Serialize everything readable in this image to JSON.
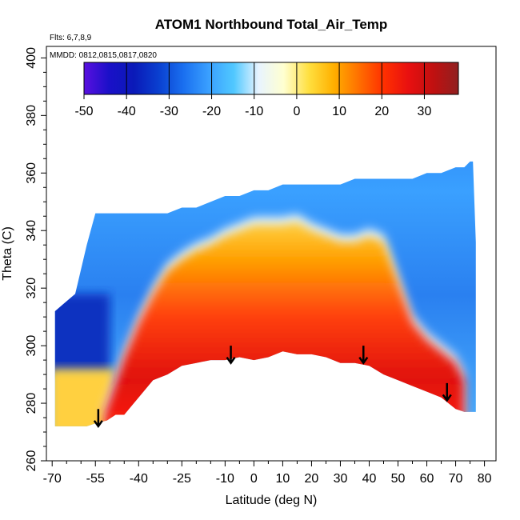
{
  "chart_data": {
    "type": "heatmap",
    "title": "ATOM1 Northbound Total_Air_Temp",
    "xlabel": "Latitude (deg N)",
    "ylabel": "Theta (C)",
    "xlim": [
      -72,
      84
    ],
    "ylim": [
      260,
      404
    ],
    "x_ticks": [
      -70,
      -55,
      -40,
      -25,
      -10,
      0,
      10,
      20,
      30,
      40,
      50,
      60,
      70,
      80
    ],
    "y_ticks": [
      260,
      280,
      300,
      320,
      340,
      360,
      380,
      400
    ],
    "annotations": {
      "flights": "Flts: 6,7,8,9",
      "dates": "MMDD: 0812,0815,0817,0820"
    },
    "colorbar": {
      "range": [
        -50,
        38
      ],
      "ticks": [
        -50,
        -40,
        -30,
        -20,
        -10,
        0,
        10,
        20,
        30
      ],
      "colors": [
        "#5a10e0",
        "#1a10c8",
        "#0a1ab8",
        "#0a40d0",
        "#1a70f0",
        "#3aa0ff",
        "#50c8ff",
        "#e8f4ff",
        "#ffffd0",
        "#ffe040",
        "#ffb000",
        "#ff7000",
        "#ff3000",
        "#e81010",
        "#c01010",
        "#902020"
      ]
    },
    "section_boundary": {
      "lat": [
        -69,
        -62,
        -58,
        -55,
        -51,
        -48,
        -45,
        -40,
        -35,
        -30,
        -25,
        -20,
        -15,
        -10,
        -5,
        0,
        5,
        10,
        15,
        20,
        25,
        30,
        35,
        40,
        45,
        50,
        55,
        60,
        65,
        70,
        73,
        75,
        76,
        77
      ],
      "theta_top": [
        312,
        318,
        335,
        346,
        346,
        346,
        346,
        346,
        346,
        346,
        348,
        348,
        350,
        352,
        352,
        354,
        354,
        356,
        356,
        356,
        356,
        356,
        358,
        358,
        358,
        358,
        358,
        360,
        360,
        362,
        362,
        364,
        364,
        336
      ],
      "theta_bottom": [
        272,
        272,
        272,
        273,
        274,
        276,
        276,
        282,
        288,
        290,
        293,
        294,
        295,
        295,
        296,
        295,
        296,
        298,
        297,
        297,
        296,
        294,
        294,
        293,
        290,
        288,
        286,
        284,
        282,
        278,
        277,
        277,
        277,
        277
      ]
    },
    "warm_core": {
      "lat": [
        -52,
        -45,
        -40,
        -35,
        -30,
        -25,
        -20,
        -15,
        -10,
        -5,
        0,
        5,
        10,
        15,
        20,
        25,
        30,
        35,
        40,
        45,
        50,
        55,
        60,
        65,
        70,
        73
      ],
      "theta_top": [
        276,
        296,
        308,
        318,
        326,
        330,
        333,
        335,
        338,
        340,
        342,
        342,
        342,
        343,
        340,
        338,
        336,
        336,
        338,
        336,
        322,
        308,
        302,
        298,
        294,
        288
      ]
    },
    "descent_markers": [
      {
        "lat": -54,
        "theta": 272
      },
      {
        "lat": -8,
        "theta": 294
      },
      {
        "lat": 38,
        "theta": 294
      },
      {
        "lat": 67,
        "theta": 281
      }
    ],
    "arrow_markers": [
      {
        "lat": -54,
        "theta": 278
      },
      {
        "lat": -8,
        "theta": 300
      },
      {
        "lat": 38,
        "theta": 300
      },
      {
        "lat": 67,
        "theta": 287
      }
    ]
  }
}
